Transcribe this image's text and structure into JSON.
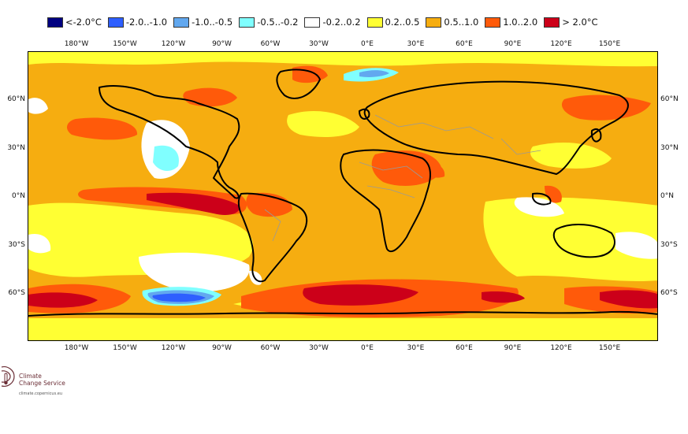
{
  "legend": [
    {
      "label": "<-2.0°C",
      "color": "#000080"
    },
    {
      "label": "-2.0..-1.0",
      "color": "#2e5fff"
    },
    {
      "label": "-1.0..-0.5",
      "color": "#62a8ef"
    },
    {
      "label": "-0.5..-0.2",
      "color": "#80ffff"
    },
    {
      "label": "-0.2..0.2",
      "color": "#ffffff"
    },
    {
      "label": "0.2..0.5",
      "color": "#ffff33"
    },
    {
      "label": "0.5..1.0",
      "color": "#f6ad10"
    },
    {
      "label": "1.0..2.0",
      "color": "#ff5a0a"
    },
    {
      "label": "> 2.0°C",
      "color": "#cc0019"
    }
  ],
  "axes": {
    "longitude_labels": [
      "180°W",
      "150°W",
      "120°W",
      "90°W",
      "60°W",
      "30°W",
      "0°E",
      "30°E",
      "60°E",
      "90°E",
      "120°E",
      "150°E"
    ],
    "latitude_labels": [
      "60°N",
      "30°N",
      "0°N",
      "30°S",
      "60°S"
    ]
  },
  "logo": {
    "name_line1": "Climate",
    "name_line2": "Change Service",
    "url": "climate.copernicus.eu"
  }
}
